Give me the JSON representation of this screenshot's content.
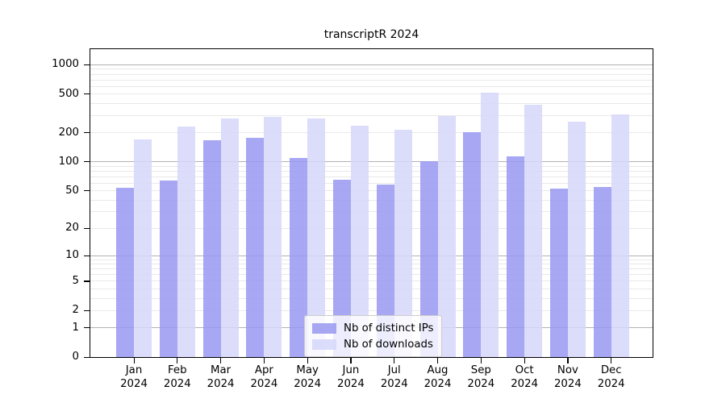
{
  "colors": {
    "ips_bar": "rgba(152,152,241,0.85)",
    "downloads_bar": "rgba(214,214,250,0.85)",
    "grid_major": "#b2b2b2",
    "grid_minor": "#e9e9e9",
    "axis": "#000000",
    "legend_border": "#cccccc"
  },
  "chart_data": {
    "type": "bar",
    "title": "transcriptR 2024",
    "xlabel": "",
    "ylabel": "",
    "yscale": "log1p",
    "grid": true,
    "legend_position": "lower-center",
    "yticks": [
      0,
      1,
      2,
      5,
      10,
      20,
      50,
      100,
      200,
      500,
      1000
    ],
    "ylim": [
      0,
      1447
    ],
    "categories": [
      "Jan 2024",
      "Feb 2024",
      "Mar 2024",
      "Apr 2024",
      "May 2024",
      "Jun 2024",
      "Jul 2024",
      "Aug 2024",
      "Sep 2024",
      "Oct 2024",
      "Nov 2024",
      "Dec 2024"
    ],
    "series": [
      {
        "name": "Nb of distinct IPs",
        "values": [
          54,
          64,
          166,
          178,
          110,
          65,
          58,
          102,
          202,
          115,
          53,
          55
        ]
      },
      {
        "name": "Nb of downloads",
        "values": [
          172,
          232,
          282,
          291,
          280,
          236,
          214,
          296,
          515,
          387,
          261,
          308
        ]
      }
    ]
  }
}
